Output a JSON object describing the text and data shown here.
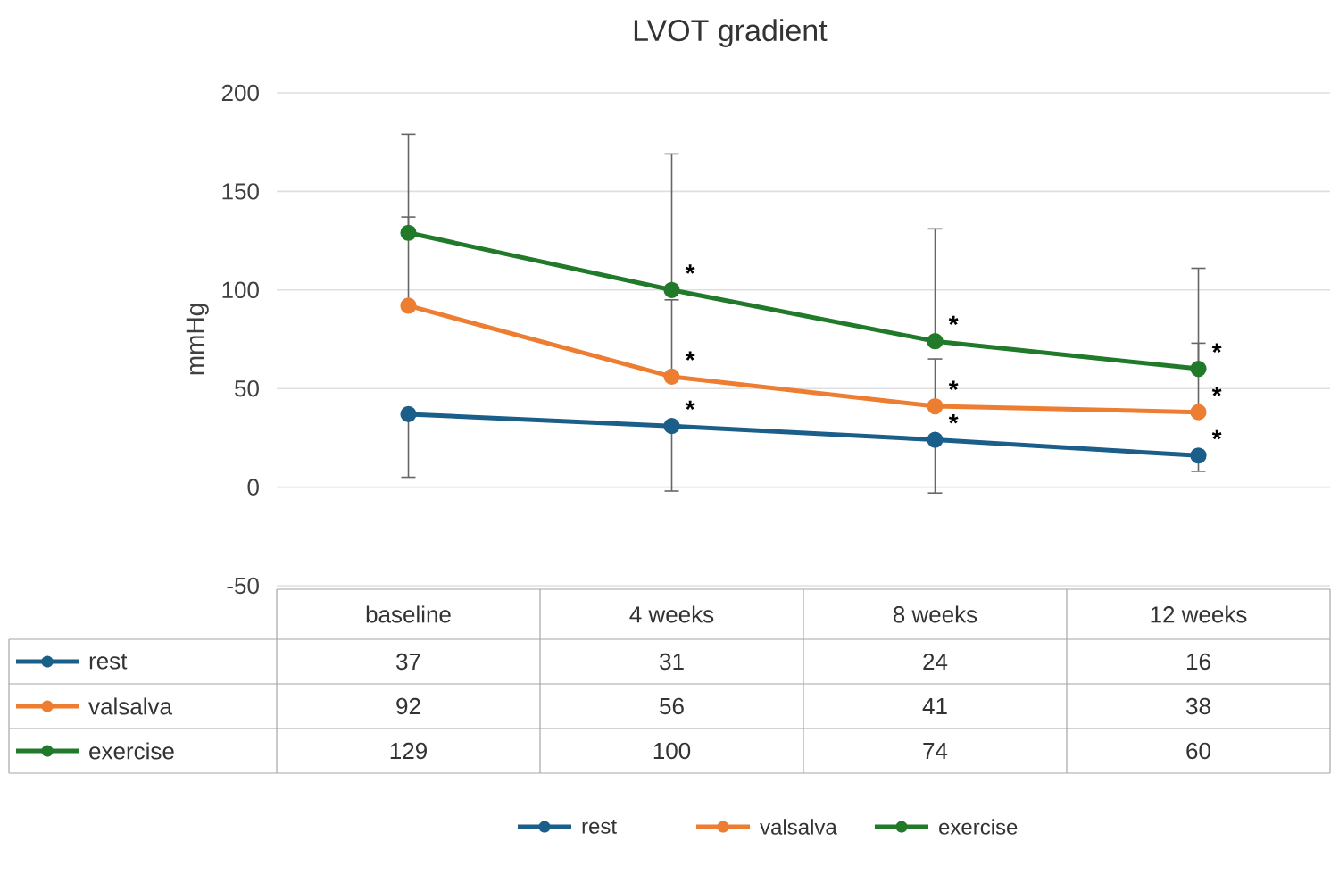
{
  "chart_data": {
    "type": "line",
    "title": "LVOT gradient",
    "ylabel": "mmHg",
    "categories": [
      "baseline",
      "4 weeks",
      "8 weeks",
      "12 weeks"
    ],
    "series": [
      {
        "name": "rest",
        "color": "#1b5e8a",
        "values": [
          37,
          31,
          24,
          16
        ],
        "value_labels": [
          "37",
          "31",
          "24",
          "16"
        ],
        "errors": [
          [
            5,
            37
          ],
          [
            -2,
            31
          ],
          [
            -3,
            24
          ],
          [
            8,
            16
          ]
        ]
      },
      {
        "name": "valsalva",
        "color": "#ed7d31",
        "values": [
          92,
          56,
          41,
          38
        ],
        "value_labels": [
          "92",
          "56",
          "41",
          "38"
        ],
        "errors": [
          [
            92,
            137
          ],
          [
            56,
            95
          ],
          [
            41,
            65
          ],
          [
            38,
            73
          ]
        ]
      },
      {
        "name": "exercise",
        "color": "#217a2a",
        "values": [
          129,
          100,
          74,
          60
        ],
        "value_labels": [
          "129",
          "100",
          "74",
          "60"
        ],
        "errors": [
          [
            129,
            179
          ],
          [
            100,
            169
          ],
          [
            74,
            131
          ],
          [
            60,
            111
          ]
        ]
      }
    ],
    "ylim": [
      -50,
      200
    ],
    "yticks": [
      -50,
      0,
      50,
      100,
      150,
      200
    ],
    "grid": "y",
    "marker": "circle",
    "line_style": "solid",
    "legend": "bottom",
    "annotations": [
      {
        "text": "*",
        "x": "4 weeks",
        "y": 100
      },
      {
        "text": "*",
        "x": "4 weeks",
        "y": 56
      },
      {
        "text": "*",
        "x": "4 weeks",
        "y": 31
      },
      {
        "text": "*",
        "x": "8 weeks",
        "y": 74
      },
      {
        "text": "*",
        "x": "8 weeks",
        "y": 41
      },
      {
        "text": "*",
        "x": "8 weeks",
        "y": 24
      },
      {
        "text": "*",
        "x": "12 weeks",
        "y": 60
      },
      {
        "text": "*",
        "x": "12 weeks",
        "y": 38
      },
      {
        "text": "*",
        "x": "12 weeks",
        "y": 16
      }
    ]
  }
}
